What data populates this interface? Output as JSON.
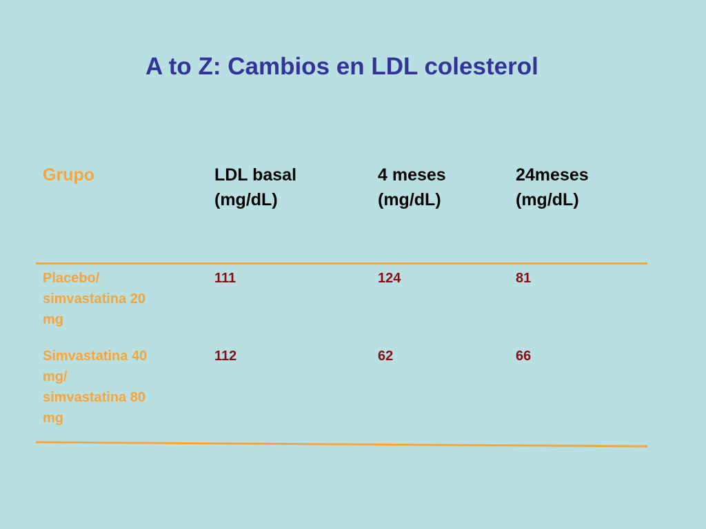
{
  "title": "A to Z: Cambios en LDL colesterol",
  "table": {
    "headers": {
      "group": "Grupo",
      "basal_line1": "LDL basal",
      "basal_line2": "(mg/dL)",
      "m4_line1": "4 meses",
      "m4_line2": "(mg/dL)",
      "m24_line1": "24meses",
      "m24_line2": "(mg/dL)"
    },
    "rows": [
      {
        "group_lines": [
          "Placebo/",
          "simvastatina 20",
          "mg"
        ],
        "basal": "111",
        "m4": "124",
        "m24": "81"
      },
      {
        "group_lines": [
          "Simvastatina 40",
          "mg/",
          "simvastatina 80",
          "mg"
        ],
        "basal": "112",
        "m4": "62",
        "m24": "66"
      }
    ]
  },
  "colors": {
    "background": "#b8dfe2",
    "title": "#333399",
    "accent_orange": "#f7a43a",
    "value_red": "#8b0d10"
  }
}
